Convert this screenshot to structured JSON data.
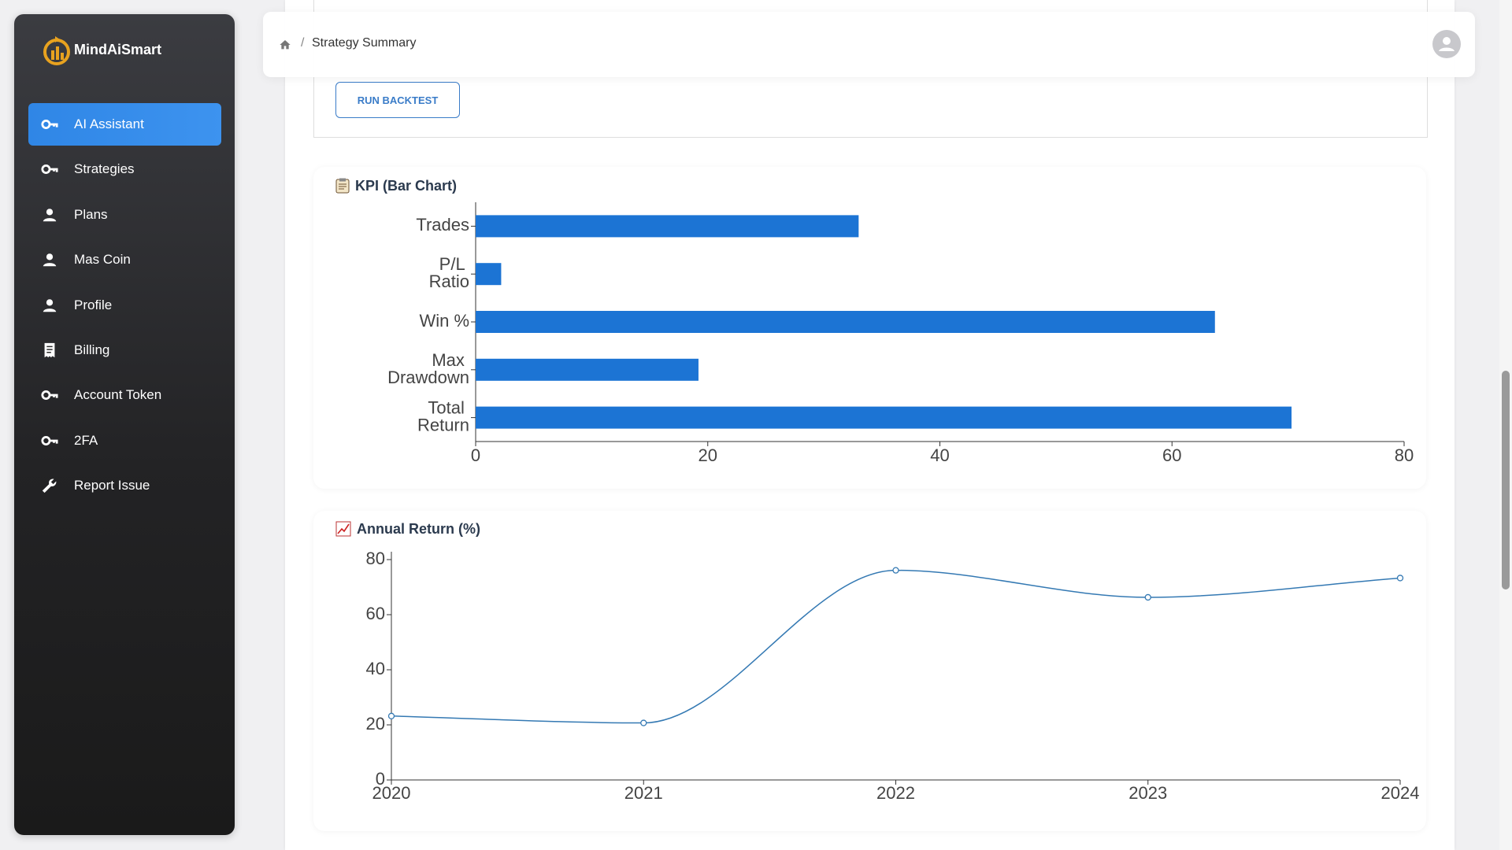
{
  "sidebar": {
    "brand": "MindAiSmart",
    "nav": [
      "AI Assistant",
      "Strategies",
      "Plans",
      "Mas Coin",
      "Profile",
      "Billing",
      "Account Token",
      "2FA",
      "Report Issue"
    ]
  },
  "breadcrumb": {
    "current": "Strategy Summary"
  },
  "actions": {
    "run_backtest": "RUN BACKTEST"
  },
  "chart_data": [
    {
      "type": "bar",
      "orientation": "horizontal",
      "title": "KPI (Bar Chart)",
      "categories": [
        "Trades",
        "P/L Ratio",
        "Win %",
        "Max Drawdown",
        "Total Return"
      ],
      "values": [
        33,
        2.2,
        63.7,
        19.2,
        70.3
      ],
      "color": "#1c74d4",
      "xlim": [
        0,
        80
      ],
      "xticks": [
        0,
        20,
        40,
        60,
        80
      ]
    },
    {
      "type": "line",
      "title": "Annual Return (%)",
      "categories": [
        "2020",
        "2021",
        "2022",
        "2023",
        "2024"
      ],
      "values": [
        23.2,
        20.7,
        76.1,
        66.3,
        73.3
      ],
      "color": "#3479b3",
      "smooth": true,
      "ylim": [
        0,
        80
      ],
      "yticks": [
        0,
        20,
        40,
        60,
        80
      ]
    }
  ]
}
